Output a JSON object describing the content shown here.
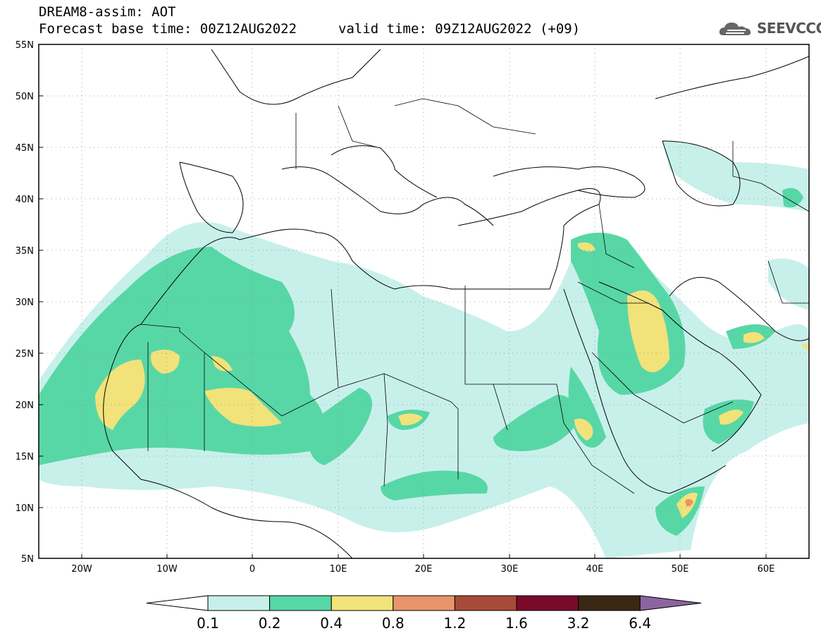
{
  "title": {
    "line1": "DREAM8-assim: AOT",
    "line2_left": "Forecast base time: 00Z12AUG2022",
    "line2_right": "valid time: 09Z12AUG2022 (+09)"
  },
  "logo": {
    "text": "SEEVCCC"
  },
  "map": {
    "lon_range": [
      -25,
      65
    ],
    "lat_range": [
      5,
      55
    ],
    "lat_ticks": [
      "55N",
      "50N",
      "45N",
      "40N",
      "35N",
      "30N",
      "25N",
      "20N",
      "15N",
      "10N",
      "5N"
    ],
    "lon_ticks": [
      "20W",
      "10W",
      "0",
      "10E",
      "20E",
      "30E",
      "40E",
      "50E",
      "60E"
    ],
    "grid": "dotted"
  },
  "colorbar": {
    "labels": [
      "0.1",
      "0.2",
      "0.4",
      "0.8",
      "1.2",
      "1.6",
      "3.2",
      "6.4"
    ],
    "colors": [
      "#c8f0ea",
      "#58d7a6",
      "#f2e27a",
      "#e8956b",
      "#a84a3a",
      "#7a0a2a",
      "#3a2814"
    ],
    "over_color": "#8c64a0",
    "under_color": "#ffffff"
  }
}
